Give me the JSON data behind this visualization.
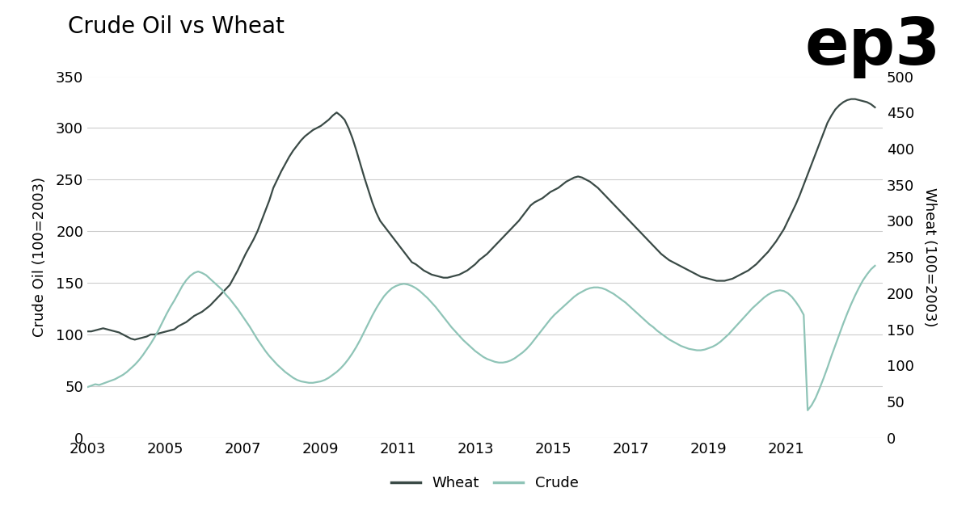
{
  "title": "Crude Oil vs Wheat",
  "ylabel_left": "Crude Oil (100=2003)",
  "ylabel_right": "Wheat (100=2003)",
  "left_ylim": [
    0,
    350
  ],
  "right_ylim": [
    0,
    500
  ],
  "left_yticks": [
    0,
    50,
    100,
    150,
    200,
    250,
    300,
    350
  ],
  "right_yticks": [
    0,
    50,
    100,
    150,
    200,
    250,
    300,
    350,
    400,
    450,
    500
  ],
  "xtick_labels": [
    "2003",
    "2005",
    "2007",
    "2009",
    "2011",
    "2013",
    "2015",
    "2017",
    "2019",
    "2021"
  ],
  "xtick_positions": [
    2003,
    2005,
    2007,
    2009,
    2011,
    2013,
    2015,
    2017,
    2019,
    2021
  ],
  "xlim": [
    2003,
    2023.5
  ],
  "wheat_color": "#3a4a46",
  "crude_color": "#8fc4b7",
  "background_color": "#ffffff",
  "grid_color": "#cccccc",
  "logo_text": "ep3",
  "legend_wheat": "Wheat",
  "legend_crude": "Crude",
  "title_fontsize": 20,
  "label_fontsize": 13,
  "tick_fontsize": 13,
  "legend_fontsize": 13,
  "line_width": 1.6,
  "wheat_data": [
    103,
    103,
    104,
    105,
    106,
    105,
    104,
    103,
    102,
    100,
    98,
    96,
    95,
    96,
    97,
    98,
    100,
    100,
    101,
    102,
    103,
    104,
    105,
    108,
    110,
    112,
    115,
    118,
    120,
    122,
    125,
    128,
    132,
    136,
    140,
    144,
    148,
    155,
    162,
    170,
    178,
    185,
    192,
    200,
    210,
    220,
    230,
    242,
    250,
    258,
    265,
    272,
    278,
    283,
    288,
    292,
    295,
    298,
    300,
    302,
    305,
    308,
    312,
    315,
    312,
    308,
    300,
    290,
    278,
    265,
    252,
    240,
    228,
    218,
    210,
    205,
    200,
    195,
    190,
    185,
    180,
    175,
    170,
    168,
    165,
    162,
    160,
    158,
    157,
    156,
    155,
    155,
    156,
    157,
    158,
    160,
    162,
    165,
    168,
    172,
    175,
    178,
    182,
    186,
    190,
    194,
    198,
    202,
    206,
    210,
    215,
    220,
    225,
    228,
    230,
    232,
    235,
    238,
    240,
    242,
    245,
    248,
    250,
    252,
    253,
    252,
    250,
    248,
    245,
    242,
    238,
    234,
    230,
    226,
    222,
    218,
    214,
    210,
    206,
    202,
    198,
    194,
    190,
    186,
    182,
    178,
    175,
    172,
    170,
    168,
    166,
    164,
    162,
    160,
    158,
    156,
    155,
    154,
    153,
    152,
    152,
    152,
    153,
    154,
    156,
    158,
    160,
    162,
    165,
    168,
    172,
    176,
    180,
    185,
    190,
    196,
    202,
    210,
    218,
    226,
    235,
    245,
    255,
    265,
    275,
    285,
    295,
    305,
    312,
    318,
    322,
    325,
    327,
    328,
    328,
    327,
    326,
    325,
    323,
    320
  ],
  "crude_data": [
    70,
    72,
    74,
    73,
    75,
    77,
    79,
    81,
    84,
    87,
    91,
    96,
    101,
    107,
    114,
    122,
    130,
    139,
    149,
    160,
    171,
    181,
    190,
    200,
    210,
    218,
    224,
    228,
    230,
    228,
    225,
    220,
    215,
    210,
    205,
    198,
    192,
    185,
    178,
    170,
    162,
    154,
    145,
    136,
    128,
    120,
    113,
    107,
    101,
    96,
    91,
    87,
    83,
    80,
    78,
    77,
    76,
    76,
    77,
    78,
    80,
    83,
    87,
    91,
    96,
    102,
    109,
    117,
    126,
    136,
    147,
    158,
    169,
    179,
    188,
    196,
    202,
    207,
    210,
    212,
    213,
    212,
    210,
    207,
    203,
    198,
    193,
    187,
    181,
    174,
    167,
    160,
    153,
    147,
    141,
    135,
    130,
    125,
    120,
    116,
    112,
    109,
    107,
    105,
    104,
    104,
    105,
    107,
    110,
    114,
    118,
    123,
    129,
    136,
    143,
    150,
    157,
    164,
    170,
    175,
    180,
    185,
    190,
    195,
    199,
    202,
    205,
    207,
    208,
    208,
    207,
    205,
    202,
    199,
    195,
    191,
    187,
    182,
    177,
    172,
    167,
    162,
    157,
    153,
    148,
    144,
    140,
    136,
    133,
    130,
    127,
    125,
    123,
    122,
    121,
    121,
    122,
    124,
    126,
    129,
    133,
    138,
    143,
    149,
    155,
    161,
    167,
    173,
    179,
    184,
    189,
    194,
    198,
    201,
    203,
    204,
    203,
    200,
    195,
    188,
    180,
    170,
    38,
    45,
    55,
    68,
    82,
    97,
    113,
    128,
    143,
    158,
    172,
    185,
    197,
    208,
    218,
    226,
    233,
    238
  ]
}
